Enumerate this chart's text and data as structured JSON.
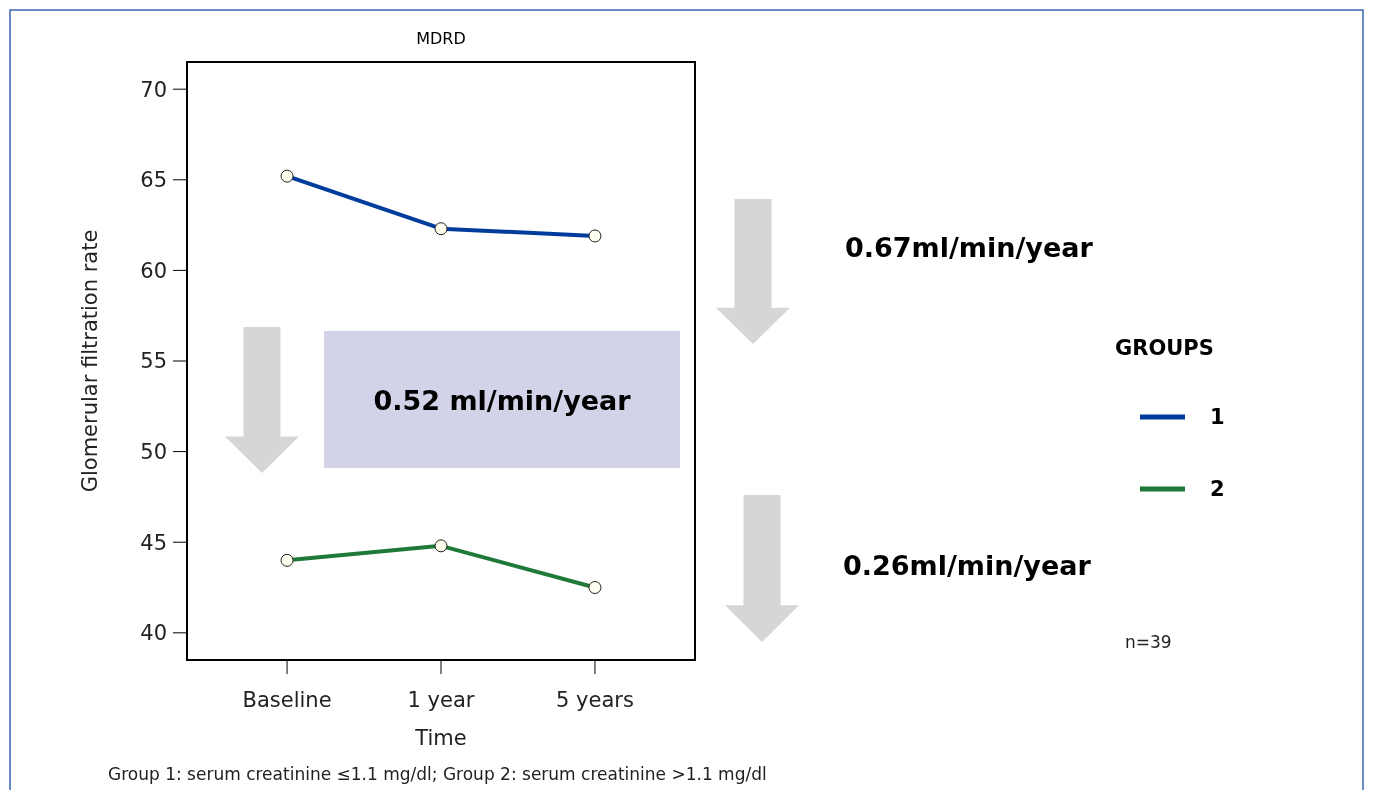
{
  "chart_data": {
    "type": "line",
    "title": "MDRD",
    "xlabel": "Time",
    "ylabel": "Glomerular filtration rate",
    "legend_title": "GROUPS",
    "categories": [
      "Baseline",
      "1 year",
      "5 years"
    ],
    "series": [
      {
        "name": "1",
        "color": "#003c9c",
        "values": [
          65.2,
          62.3,
          61.9
        ]
      },
      {
        "name": "2",
        "color": "#1f7a3a",
        "values": [
          44,
          44.8,
          42.5
        ]
      }
    ],
    "ylim": [
      38.5,
      71.5
    ],
    "yticks": [
      40,
      45,
      50,
      55,
      60,
      65,
      70
    ],
    "grid": false,
    "legend": "right",
    "marker": "circle",
    "line_style": "solid",
    "annotations": [
      "0.52 ml/min/year",
      "0.67ml/min/year",
      "0.26ml/min/year",
      "n=39",
      "Group 1: serum creatinine ≤1.1 mg/dl; Group 2: serum creatinine >1.1 mg/dl"
    ]
  }
}
